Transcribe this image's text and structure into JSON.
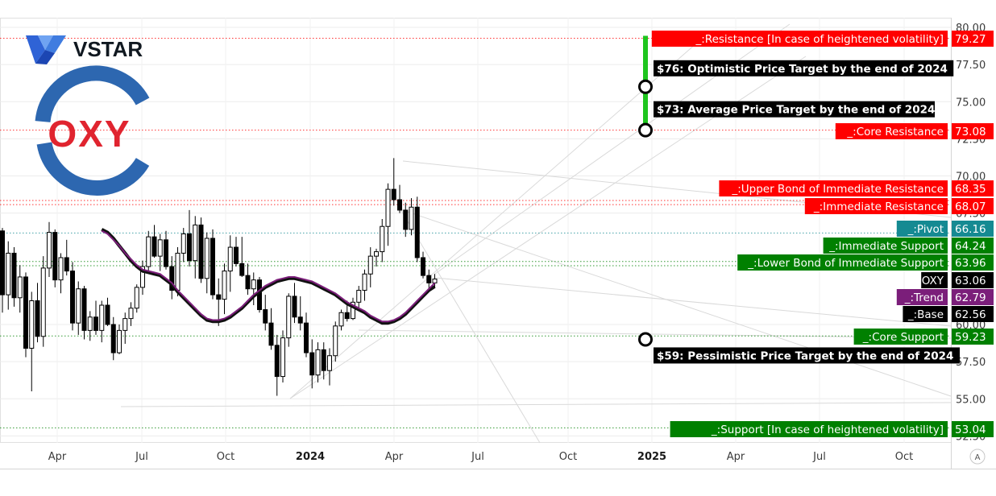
{
  "brand": {
    "name": "VSTAR",
    "ticker_logo": "OXY"
  },
  "colors": {
    "red": "#ff0000",
    "green": "#008000",
    "teal": "#158a92",
    "purple": "#7b1e7a",
    "black": "#000000",
    "candle_up_fill": "#ffffff",
    "candle_dn_fill": "#000000",
    "grid": "#ececec",
    "target_bar": "#1ec51e",
    "vstar_blue": "#3f7ce0",
    "oxy_red": "#e0242f",
    "oxy_blue": "#2d67b0"
  },
  "chart_data": {
    "type": "candlestick",
    "symbol": "OXY",
    "x_ticks": [
      {
        "label": "Apr",
        "year": false
      },
      {
        "label": "Jul",
        "year": false
      },
      {
        "label": "Oct",
        "year": false
      },
      {
        "label": "2024",
        "year": true
      },
      {
        "label": "Apr",
        "year": false
      },
      {
        "label": "Jul",
        "year": false
      },
      {
        "label": "Oct",
        "year": false
      },
      {
        "label": "2025",
        "year": true
      },
      {
        "label": "Apr",
        "year": false
      },
      {
        "label": "Jul",
        "year": false
      },
      {
        "label": "Oct",
        "year": false
      }
    ],
    "y_ticks": [
      "80.00",
      "77.50",
      "75.00",
      "72.50",
      "70.00",
      "67.50",
      "60.00",
      "57.50",
      "55.00",
      "52.50"
    ],
    "ylim": [
      52.5,
      80.0
    ],
    "log_scale_button": "A",
    "levels": [
      {
        "name": "_:Resistance [In case of heightened volatility]",
        "value": "79.27",
        "color": "red",
        "line": "dotted"
      },
      {
        "name": "_:Core Resistance",
        "value": "73.08",
        "color": "red",
        "line": "dotted"
      },
      {
        "name": "_:Upper Bond of Immediate Resistance",
        "value": "68.35",
        "color": "red",
        "line": "dotted"
      },
      {
        "name": "_:Immediate Resistance",
        "value": "68.07",
        "color": "red",
        "line": "dotted"
      },
      {
        "name": "_:Pivot",
        "value": "66.16",
        "color": "teal",
        "line": "dotted"
      },
      {
        "name": "_:Immediate Support",
        "value": "64.24",
        "color": "green",
        "line": "dotted"
      },
      {
        "name": "_:Lower Bond of Immediate Support",
        "value": "63.96",
        "color": "green",
        "line": "dotted"
      },
      {
        "name": "OXY",
        "value": "63.06",
        "color": "black",
        "line": "none"
      },
      {
        "name": "_:Trend",
        "value": "62.79",
        "color": "purple",
        "line": "none"
      },
      {
        "name": "_:Base",
        "value": "62.56",
        "color": "black",
        "line": "none"
      },
      {
        "name": "_:Core Support",
        "value": "59.23",
        "color": "green",
        "line": "dotted"
      },
      {
        "name": "_:Support [In case of heightened volatility]",
        "value": "53.04",
        "color": "green",
        "line": "dotted"
      }
    ],
    "targets": [
      {
        "text": "$76: Optimistic Price Target by the end of 2024",
        "value": 76,
        "period": "end of 2024"
      },
      {
        "text": "$73: Average Price Target by the end of 2024",
        "value": 73,
        "period": "end of 2024"
      },
      {
        "text": "$59: Pessimistic Price Target by the end of 2024",
        "value": 59,
        "period": "end of 2024"
      }
    ],
    "candles_weekly": [
      [
        66.3,
        66.5,
        60.8,
        62.0
      ],
      [
        62.0,
        65.6,
        61.0,
        64.8
      ],
      [
        64.8,
        65.2,
        61.2,
        61.8
      ],
      [
        61.8,
        64.0,
        60.8,
        63.2
      ],
      [
        63.2,
        63.5,
        57.8,
        58.4
      ],
      [
        58.4,
        62.2,
        55.5,
        61.6
      ],
      [
        61.6,
        62.8,
        58.8,
        59.2
      ],
      [
        59.2,
        64.6,
        58.5,
        63.8
      ],
      [
        63.8,
        66.9,
        63.2,
        66.2
      ],
      [
        66.2,
        66.4,
        62.5,
        63.0
      ],
      [
        63.0,
        64.8,
        62.1,
        64.5
      ],
      [
        64.5,
        65.7,
        63.3,
        63.6
      ],
      [
        63.6,
        64.2,
        59.6,
        60.1
      ],
      [
        60.1,
        62.9,
        59.3,
        62.4
      ],
      [
        62.4,
        62.6,
        59.0,
        59.6
      ],
      [
        59.6,
        60.9,
        58.9,
        60.5
      ],
      [
        60.5,
        61.6,
        59.3,
        59.6
      ],
      [
        59.6,
        61.6,
        58.8,
        61.3
      ],
      [
        61.3,
        61.8,
        59.9,
        60.0
      ],
      [
        60.0,
        60.5,
        57.6,
        58.1
      ],
      [
        58.1,
        60.0,
        58.0,
        59.6
      ],
      [
        59.6,
        60.8,
        58.7,
        60.4
      ],
      [
        60.4,
        61.5,
        59.9,
        61.1
      ],
      [
        61.1,
        62.7,
        60.8,
        62.5
      ],
      [
        62.5,
        64.3,
        62.0,
        63.9
      ],
      [
        63.9,
        66.3,
        63.6,
        65.9
      ],
      [
        65.9,
        66.7,
        64.5,
        64.6
      ],
      [
        64.6,
        66.1,
        63.6,
        65.7
      ],
      [
        65.7,
        66.3,
        63.7,
        63.9
      ],
      [
        63.9,
        64.6,
        61.7,
        62.3
      ],
      [
        62.3,
        65.2,
        61.9,
        64.8
      ],
      [
        64.8,
        66.5,
        64.2,
        66.1
      ],
      [
        66.1,
        67.7,
        63.9,
        64.3
      ],
      [
        64.3,
        67.3,
        63.1,
        66.7
      ],
      [
        66.7,
        67.2,
        62.8,
        63.1
      ],
      [
        63.1,
        66.2,
        62.1,
        65.8
      ],
      [
        65.8,
        66.4,
        61.7,
        62.0
      ],
      [
        62.0,
        63.1,
        59.9,
        61.7
      ],
      [
        61.7,
        64.1,
        60.7,
        63.6
      ],
      [
        63.6,
        66.0,
        62.2,
        65.2
      ],
      [
        65.2,
        65.9,
        63.9,
        64.1
      ],
      [
        64.1,
        65.9,
        63.2,
        63.3
      ],
      [
        63.3,
        64.1,
        62.0,
        62.4
      ],
      [
        62.4,
        63.5,
        61.3,
        63.0
      ],
      [
        63.0,
        63.2,
        60.8,
        61.0
      ],
      [
        61.0,
        62.0,
        59.6,
        60.1
      ],
      [
        60.1,
        61.1,
        58.3,
        58.6
      ],
      [
        58.6,
        59.3,
        55.2,
        56.5
      ],
      [
        56.5,
        59.6,
        56.1,
        59.1
      ],
      [
        59.1,
        62.1,
        58.5,
        61.9
      ],
      [
        61.9,
        62.8,
        60.1,
        60.5
      ],
      [
        60.5,
        61.9,
        59.6,
        60.1
      ],
      [
        60.1,
        60.8,
        57.8,
        58.1
      ],
      [
        58.1,
        59.0,
        55.7,
        56.6
      ],
      [
        56.6,
        58.8,
        56.1,
        58.3
      ],
      [
        58.3,
        58.8,
        56.3,
        56.9
      ],
      [
        56.9,
        58.4,
        55.9,
        57.9
      ],
      [
        57.9,
        60.2,
        57.5,
        59.9
      ],
      [
        59.9,
        61.0,
        59.6,
        60.8
      ],
      [
        60.8,
        61.6,
        60.2,
        60.4
      ],
      [
        60.4,
        61.8,
        60.3,
        61.5
      ],
      [
        61.5,
        62.6,
        61.0,
        62.3
      ],
      [
        62.3,
        63.7,
        61.6,
        63.4
      ],
      [
        63.4,
        65.2,
        62.5,
        64.6
      ],
      [
        64.6,
        65.1,
        63.9,
        64.9
      ],
      [
        64.9,
        67.1,
        64.2,
        66.6
      ],
      [
        66.6,
        69.5,
        65.3,
        69.1
      ],
      [
        69.1,
        71.2,
        68.0,
        68.4
      ],
      [
        68.4,
        69.4,
        67.5,
        67.7
      ],
      [
        67.7,
        68.2,
        65.9,
        66.4
      ],
      [
        66.4,
        68.5,
        66.0,
        67.9
      ],
      [
        67.9,
        68.6,
        64.2,
        64.5
      ],
      [
        64.5,
        64.9,
        63.1,
        63.3
      ],
      [
        63.3,
        63.7,
        62.4,
        62.8
      ],
      [
        62.8,
        63.4,
        62.5,
        63.06
      ]
    ],
    "ma_trend": [
      66.3,
      66.1,
      65.7,
      65.3,
      64.8,
      64.4,
      64.0,
      63.7,
      63.6,
      63.5,
      63.4,
      63.1,
      62.8,
      62.3,
      61.9,
      61.5,
      61.1,
      60.7,
      60.4,
      60.3,
      60.3,
      60.4,
      60.6,
      60.9,
      61.2,
      61.6,
      62.0,
      62.3,
      62.6,
      62.8,
      63.0,
      63.1,
      63.2,
      63.2,
      63.1,
      63.0,
      62.9,
      62.7,
      62.5,
      62.3,
      62.1,
      61.8,
      61.5,
      61.3,
      61.1,
      60.9,
      60.6,
      60.4,
      60.2,
      60.2,
      60.3,
      60.5,
      60.8,
      61.2,
      61.6,
      62.0,
      62.4,
      62.79
    ],
    "ma_base": [
      66.4,
      66.2,
      65.8,
      65.3,
      64.8,
      64.3,
      63.9,
      63.6,
      63.5,
      63.4,
      63.3,
      63.0,
      62.7,
      62.2,
      61.8,
      61.4,
      61.0,
      60.6,
      60.3,
      60.2,
      60.2,
      60.3,
      60.5,
      60.8,
      61.1,
      61.5,
      61.9,
      62.2,
      62.5,
      62.7,
      62.9,
      63.0,
      63.1,
      63.1,
      63.0,
      62.9,
      62.8,
      62.6,
      62.4,
      62.2,
      62.0,
      61.7,
      61.4,
      61.2,
      61.0,
      60.8,
      60.5,
      60.3,
      60.1,
      60.1,
      60.2,
      60.4,
      60.7,
      61.1,
      61.5,
      61.9,
      62.3,
      62.56
    ]
  }
}
